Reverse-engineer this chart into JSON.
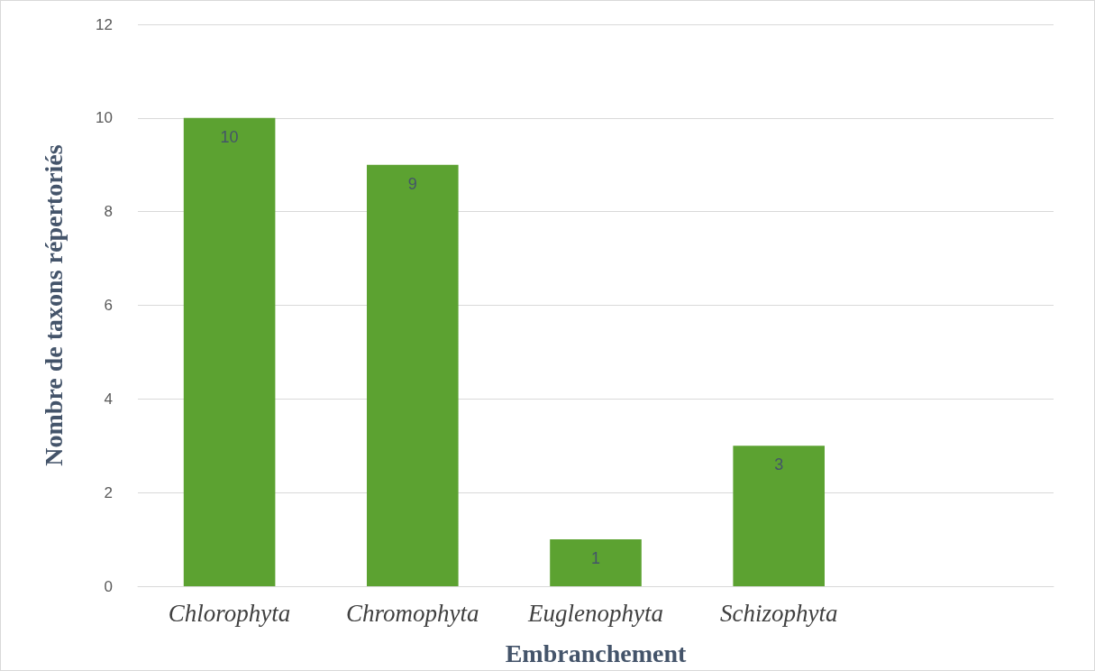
{
  "chart_data": {
    "type": "bar",
    "xlabel": "Embranchement",
    "ylabel": "Nombre de taxons répertoriés",
    "categories": [
      "Chlorophyta",
      "Chromophyta",
      "Euglenophyta",
      "Schizophyta",
      null
    ],
    "values": [
      10,
      9,
      1,
      3,
      null
    ],
    "color": "#5ca231",
    "ylim": [
      0,
      12
    ],
    "yticks": [
      0,
      2,
      4,
      6,
      8,
      10,
      12
    ],
    "grid": "y",
    "data_labels": true
  }
}
